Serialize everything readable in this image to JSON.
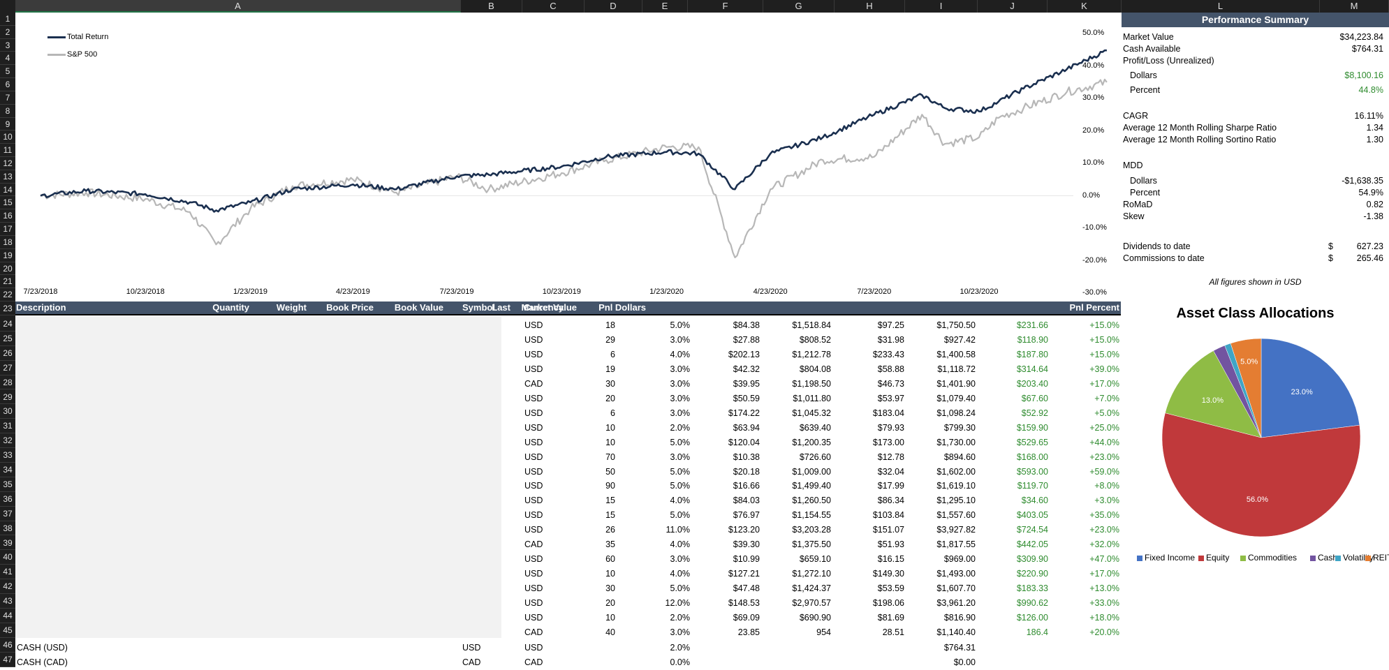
{
  "columns": [
    "A",
    "B",
    "C",
    "D",
    "E",
    "F",
    "G",
    "H",
    "I",
    "J",
    "K",
    "L",
    "M"
  ],
  "rows": [
    "1",
    "2",
    "3",
    "4",
    "5",
    "6",
    "7",
    "8",
    "9",
    "10",
    "11",
    "12",
    "13",
    "14",
    "15",
    "16",
    "17",
    "18",
    "19",
    "20",
    "21",
    "22",
    "23",
    "24",
    "25",
    "26",
    "27",
    "28",
    "29",
    "30",
    "31",
    "32",
    "33",
    "34",
    "35",
    "36",
    "37",
    "38",
    "39",
    "40",
    "41",
    "42",
    "43",
    "44",
    "45",
    "46",
    "47"
  ],
  "chart": {
    "legend": [
      "Total Return",
      "S&P 500"
    ],
    "colors": {
      "total_return": "#1a2f4f",
      "sp500": "#b7b7b7"
    },
    "y_ticks": [
      "50.0%",
      "40.0%",
      "30.0%",
      "20.0%",
      "10.0%",
      "0.0%",
      "-10.0%",
      "-20.0%",
      "-30.0%"
    ],
    "x_ticks": [
      "7/23/2018",
      "10/23/2018",
      "1/23/2019",
      "4/23/2019",
      "7/23/2019",
      "10/23/2019",
      "1/23/2020",
      "4/23/2020",
      "7/23/2020",
      "10/23/2020"
    ]
  },
  "chart_data": [
    {
      "type": "line",
      "title": "",
      "xlabel": "",
      "ylabel": "",
      "ylim": [
        -30,
        50
      ],
      "x": [
        "7/23/2018",
        "9/1/2018",
        "10/23/2018",
        "12/1/2018",
        "12/24/2018",
        "1/23/2019",
        "3/1/2019",
        "4/23/2019",
        "5/31/2019",
        "7/23/2019",
        "8/20/2019",
        "10/23/2019",
        "12/1/2019",
        "1/23/2020",
        "2/20/2020",
        "3/23/2020",
        "4/23/2020",
        "6/8/2020",
        "7/23/2020",
        "9/3/2020",
        "9/23/2020",
        "10/23/2020",
        "11/9/2020",
        "12/1/2020",
        "1/8/2021",
        "2/12/2021"
      ],
      "series": [
        {
          "name": "Total Return",
          "values": [
            0,
            1.5,
            0.5,
            -2,
            -4.5,
            -2,
            2,
            3.5,
            2,
            6,
            6.5,
            9,
            12,
            13.5,
            13,
            2,
            13,
            18,
            25,
            31,
            27,
            26,
            29,
            33,
            39,
            44.8
          ]
        },
        {
          "name": "S&P 500",
          "values": [
            0,
            1,
            -1,
            -5,
            -15,
            -4,
            3,
            5,
            1,
            6,
            2,
            7,
            11,
            15,
            15,
            -19,
            2,
            11,
            12,
            25,
            16,
            18,
            24,
            27,
            32,
            35
          ]
        }
      ],
      "legend_position": "top-left"
    },
    {
      "type": "pie",
      "title": "Asset Class Allocations",
      "categories": [
        "Fixed Income",
        "Equity",
        "Commodities",
        "Cash",
        "Volatility",
        "REIT"
      ],
      "values": [
        23.0,
        56.0,
        13.0,
        2.0,
        1.0,
        5.0
      ],
      "colors": [
        "#4472c4",
        "#c0393b",
        "#8fbc45",
        "#7254a0",
        "#3fa5c6",
        "#e47d32"
      ],
      "data_labels": [
        "23.0%",
        "56.0%",
        "13.0%",
        "",
        "",
        "5.0%"
      ],
      "legend_position": "bottom"
    }
  ],
  "table": {
    "headers": [
      "Description",
      "Symbol",
      "Currency",
      "Quantity",
      "Weight",
      "Book Price",
      "Book Value",
      "Last",
      "Market Value",
      "Pnl Dollars",
      "Pnl Percent"
    ],
    "rows": [
      [
        "USD",
        "18",
        "5.0%",
        "$84.38",
        "$1,518.84",
        "$97.25",
        "$1,750.50",
        "$231.66",
        "+15.0%"
      ],
      [
        "USD",
        "29",
        "3.0%",
        "$27.88",
        "$808.52",
        "$31.98",
        "$927.42",
        "$118.90",
        "+15.0%"
      ],
      [
        "USD",
        "6",
        "4.0%",
        "$202.13",
        "$1,212.78",
        "$233.43",
        "$1,400.58",
        "$187.80",
        "+15.0%"
      ],
      [
        "USD",
        "19",
        "3.0%",
        "$42.32",
        "$804.08",
        "$58.88",
        "$1,118.72",
        "$314.64",
        "+39.0%"
      ],
      [
        "CAD",
        "30",
        "3.0%",
        "$39.95",
        "$1,198.50",
        "$46.73",
        "$1,401.90",
        "$203.40",
        "+17.0%"
      ],
      [
        "USD",
        "20",
        "3.0%",
        "$50.59",
        "$1,011.80",
        "$53.97",
        "$1,079.40",
        "$67.60",
        "+7.0%"
      ],
      [
        "USD",
        "6",
        "3.0%",
        "$174.22",
        "$1,045.32",
        "$183.04",
        "$1,098.24",
        "$52.92",
        "+5.0%"
      ],
      [
        "USD",
        "10",
        "2.0%",
        "$63.94",
        "$639.40",
        "$79.93",
        "$799.30",
        "$159.90",
        "+25.0%"
      ],
      [
        "USD",
        "10",
        "5.0%",
        "$120.04",
        "$1,200.35",
        "$173.00",
        "$1,730.00",
        "$529.65",
        "+44.0%"
      ],
      [
        "USD",
        "70",
        "3.0%",
        "$10.38",
        "$726.60",
        "$12.78",
        "$894.60",
        "$168.00",
        "+23.0%"
      ],
      [
        "USD",
        "50",
        "5.0%",
        "$20.18",
        "$1,009.00",
        "$32.04",
        "$1,602.00",
        "$593.00",
        "+59.0%"
      ],
      [
        "USD",
        "90",
        "5.0%",
        "$16.66",
        "$1,499.40",
        "$17.99",
        "$1,619.10",
        "$119.70",
        "+8.0%"
      ],
      [
        "USD",
        "15",
        "4.0%",
        "$84.03",
        "$1,260.50",
        "$86.34",
        "$1,295.10",
        "$34.60",
        "+3.0%"
      ],
      [
        "USD",
        "15",
        "5.0%",
        "$76.97",
        "$1,154.55",
        "$103.84",
        "$1,557.60",
        "$403.05",
        "+35.0%"
      ],
      [
        "USD",
        "26",
        "11.0%",
        "$123.20",
        "$3,203.28",
        "$151.07",
        "$3,927.82",
        "$724.54",
        "+23.0%"
      ],
      [
        "CAD",
        "35",
        "4.0%",
        "$39.30",
        "$1,375.50",
        "$51.93",
        "$1,817.55",
        "$442.05",
        "+32.0%"
      ],
      [
        "USD",
        "60",
        "3.0%",
        "$10.99",
        "$659.10",
        "$16.15",
        "$969.00",
        "$309.90",
        "+47.0%"
      ],
      [
        "USD",
        "10",
        "4.0%",
        "$127.21",
        "$1,272.10",
        "$149.30",
        "$1,493.00",
        "$220.90",
        "+17.0%"
      ],
      [
        "USD",
        "30",
        "5.0%",
        "$47.48",
        "$1,424.37",
        "$53.59",
        "$1,607.70",
        "$183.33",
        "+13.0%"
      ],
      [
        "USD",
        "20",
        "12.0%",
        "$148.53",
        "$2,970.57",
        "$198.06",
        "$3,961.20",
        "$990.62",
        "+33.0%"
      ],
      [
        "USD",
        "10",
        "2.0%",
        "$69.09",
        "$690.90",
        "$81.69",
        "$816.90",
        "$126.00",
        "+18.0%"
      ],
      [
        "CAD",
        "40",
        "3.0%",
        "23.85",
        "954",
        "28.51",
        "$1,140.40",
        "186.4",
        "+20.0%"
      ]
    ],
    "cash_rows": [
      {
        "description": "CASH (USD)",
        "symbol": "USD",
        "currency": "USD",
        "weight": "2.0%",
        "market_value": "$764.31"
      },
      {
        "description": "CASH (CAD)",
        "symbol": "CAD",
        "currency": "CAD",
        "weight": "0.0%",
        "market_value": "$0.00"
      }
    ]
  },
  "summary": {
    "title": "Performance Summary",
    "market_value_label": "Market Value",
    "market_value": "$34,223.84",
    "cash_label": "Cash Available",
    "cash": "$764.31",
    "pl_label": "Profit/Loss (Unrealized)",
    "pl_dollars_label": "Dollars",
    "pl_dollars": "$8,100.16",
    "pl_percent_label": "Percent",
    "pl_percent": "44.8%",
    "cagr_label": "CAGR",
    "cagr": "16.11%",
    "sharpe_label": "Average 12 Month Rolling Sharpe Ratio",
    "sharpe": "1.34",
    "sortino_label": "Average 12 Month Rolling Sortino Ratio",
    "sortino": "1.30",
    "mdd_label": "MDD",
    "mdd_dollars_label": "Dollars",
    "mdd_dollars": "-$1,638.35",
    "mdd_percent_label": "Percent",
    "mdd_percent": "54.9%",
    "romad_label": "RoMaD",
    "romad": "0.82",
    "skew_label": "Skew",
    "skew": "-1.38",
    "dividends_label": "Dividends to date",
    "dividends_cur": "$",
    "dividends": "627.23",
    "commissions_label": "Commissions to date",
    "commissions_cur": "$",
    "commissions": "265.46",
    "note": "All figures shown in USD"
  }
}
